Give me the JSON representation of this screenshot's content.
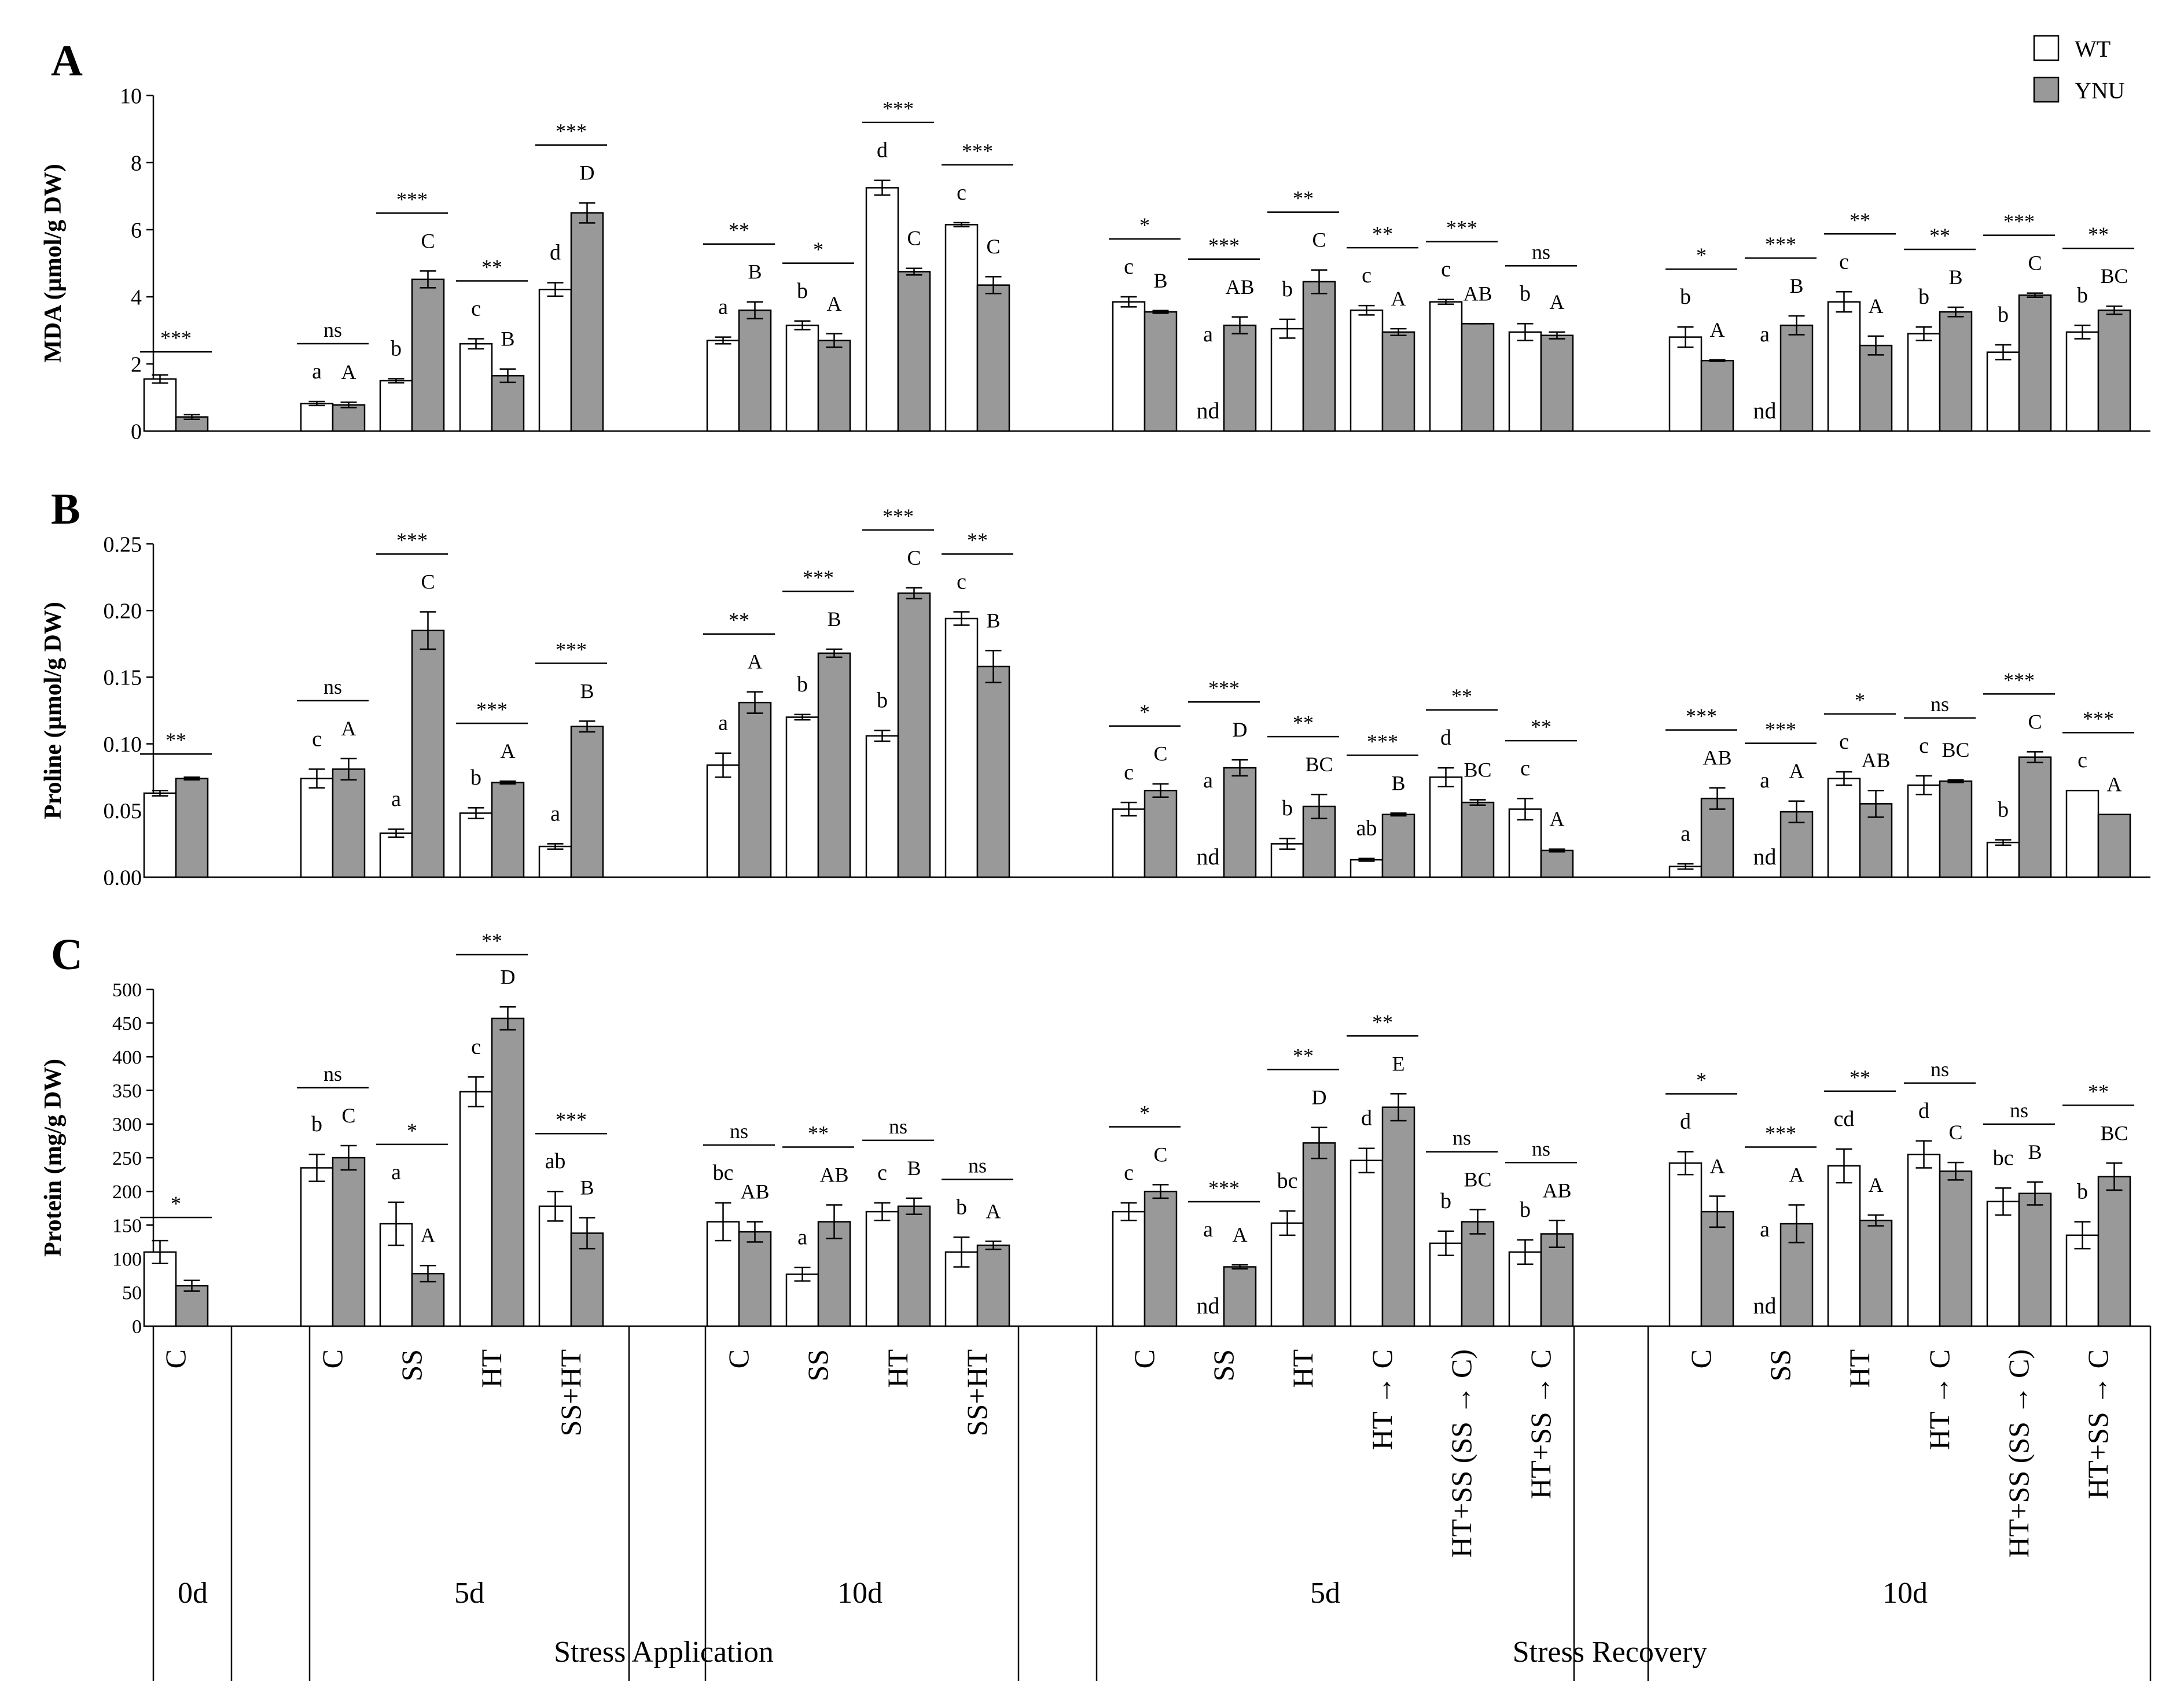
{
  "chart_data": {
    "type": "bar",
    "legend": {
      "position": "top-right",
      "entries": [
        {
          "name": "WT",
          "color": "#ffffff"
        },
        {
          "name": "YNU",
          "color": "#999999"
        }
      ]
    },
    "colors": {
      "WT": "#ffffff",
      "YNU": "#999999",
      "line": "#000000"
    },
    "panels": [
      {
        "id": "A",
        "label": "A",
        "ylabel": "MDA (µmol/g DW)",
        "ylim": [
          0,
          10
        ],
        "yticks": [
          "0",
          "2",
          "4",
          "6",
          "8",
          "10"
        ],
        "tick_values": [
          0,
          2,
          4,
          6,
          8,
          10
        ],
        "data": [
          [
            1.55,
            0.12,
            0.42,
            0.07,
            "",
            "",
            "***"
          ],
          [
            0.82,
            0.06,
            0.78,
            0.08,
            "a",
            "A",
            "ns"
          ],
          [
            1.5,
            0.06,
            4.52,
            0.25,
            "b",
            "C",
            "***"
          ],
          [
            2.6,
            0.15,
            1.65,
            0.2,
            "c",
            "B",
            "**"
          ],
          [
            4.22,
            0.2,
            6.5,
            0.3,
            "d",
            "D",
            "***"
          ],
          [
            2.7,
            0.1,
            3.6,
            0.25,
            "a",
            "B",
            "**"
          ],
          [
            3.15,
            0.13,
            2.7,
            0.2,
            "b",
            "A",
            "*"
          ],
          [
            7.25,
            0.22,
            4.75,
            0.1,
            "d",
            "C",
            "***"
          ],
          [
            6.15,
            0.06,
            4.35,
            0.25,
            "c",
            "C",
            "***"
          ],
          [
            3.85,
            0.15,
            3.55,
            0.04,
            "c",
            "B",
            "*"
          ],
          [
            null,
            0,
            3.15,
            0.25,
            "a",
            "AB",
            "***"
          ],
          [
            3.05,
            0.28,
            4.45,
            0.35,
            "b",
            "C",
            "**"
          ],
          [
            3.6,
            0.14,
            2.95,
            0.1,
            "c",
            "A",
            "**"
          ],
          [
            3.85,
            0.07,
            3.2,
            0,
            "c",
            "AB",
            "***"
          ],
          [
            2.95,
            0.25,
            2.85,
            0.1,
            "b",
            "A",
            "ns"
          ],
          [
            2.8,
            0.3,
            2.1,
            0.02,
            "b",
            "A",
            "*"
          ],
          [
            null,
            0,
            3.15,
            0.28,
            "a",
            "B",
            "***"
          ],
          [
            3.85,
            0.3,
            2.55,
            0.28,
            "c",
            "A",
            "**"
          ],
          [
            2.9,
            0.2,
            3.55,
            0.14,
            "b",
            "B",
            "**"
          ],
          [
            2.35,
            0.22,
            4.05,
            0.06,
            "b",
            "C",
            "***"
          ],
          [
            2.95,
            0.2,
            3.6,
            0.12,
            "b",
            "BC",
            "**"
          ]
        ]
      },
      {
        "id": "B",
        "label": "B",
        "ylabel": "Proline (µmol/g DW)",
        "ylim": [
          0,
          0.25
        ],
        "yticks": [
          "0.00",
          "0.05",
          "0.10",
          "0.15",
          "0.20",
          "0.25"
        ],
        "tick_values": [
          0,
          0.05,
          0.1,
          0.15,
          0.2,
          0.25
        ],
        "data": [
          [
            0.063,
            0.002,
            0.074,
            0.001,
            "",
            "",
            "**"
          ],
          [
            0.074,
            0.007,
            0.081,
            0.008,
            "c",
            "A",
            "ns"
          ],
          [
            0.033,
            0.003,
            0.185,
            0.014,
            "a",
            "C",
            "***"
          ],
          [
            0.048,
            0.004,
            0.071,
            0.001,
            "b",
            "A",
            "***"
          ],
          [
            0.023,
            0.002,
            0.113,
            0.004,
            "a",
            "B",
            "***"
          ],
          [
            0.084,
            0.009,
            0.131,
            0.008,
            "a",
            "A",
            "**"
          ],
          [
            0.12,
            0.002,
            0.168,
            0.003,
            "b",
            "B",
            "***"
          ],
          [
            0.106,
            0.004,
            0.213,
            0.004,
            "b",
            "C",
            "***"
          ],
          [
            0.194,
            0.005,
            0.158,
            0.012,
            "c",
            "B",
            "**"
          ],
          [
            0.051,
            0.005,
            0.065,
            0.005,
            "c",
            "C",
            "*"
          ],
          [
            null,
            0,
            0.082,
            0.006,
            "a",
            "D",
            "***"
          ],
          [
            0.025,
            0.004,
            0.053,
            0.009,
            "b",
            "BC",
            "**"
          ],
          [
            0.013,
            0.001,
            0.047,
            0.001,
            "ab",
            "B",
            "***"
          ],
          [
            0.075,
            0.007,
            0.056,
            0.002,
            "d",
            "BC",
            "**"
          ],
          [
            0.051,
            0.008,
            0.02,
            0.001,
            "c",
            "A",
            "**"
          ],
          [
            0.008,
            0.002,
            0.059,
            0.008,
            "a",
            "AB",
            "***"
          ],
          [
            null,
            0,
            0.049,
            0.008,
            "a",
            "A",
            "***"
          ],
          [
            0.074,
            0.005,
            0.055,
            0.01,
            "c",
            "AB",
            "*"
          ],
          [
            0.069,
            0.007,
            0.072,
            0.001,
            "c",
            "BC",
            "ns"
          ],
          [
            0.026,
            0.002,
            0.09,
            0.004,
            "b",
            "C",
            "***"
          ],
          [
            0.065,
            0,
            0.047,
            0,
            "c",
            "A",
            "***"
          ]
        ]
      },
      {
        "id": "C",
        "label": "C",
        "ylabel": "Protein (mg/g DW)",
        "ylim": [
          0,
          500
        ],
        "yticks": [
          "0",
          "50",
          "100",
          "150",
          "200",
          "250",
          "300",
          "350",
          "400",
          "450",
          "500"
        ],
        "tick_values": [
          0,
          50,
          100,
          150,
          200,
          250,
          300,
          350,
          400,
          450,
          500
        ],
        "data": [
          [
            110,
            17,
            60,
            8,
            "",
            "",
            "*"
          ],
          [
            235,
            20,
            250,
            18,
            "b",
            "C",
            "ns"
          ],
          [
            152,
            32,
            78,
            12,
            "a",
            "A",
            "*"
          ],
          [
            348,
            22,
            457,
            17,
            "c",
            "D",
            "**"
          ],
          [
            178,
            22,
            138,
            23,
            "ab",
            "B",
            "***"
          ],
          [
            155,
            28,
            140,
            15,
            "bc",
            "AB",
            "ns"
          ],
          [
            77,
            10,
            155,
            25,
            "a",
            "AB",
            "**"
          ],
          [
            170,
            13,
            178,
            12,
            "c",
            "B",
            "ns"
          ],
          [
            110,
            22,
            120,
            6,
            "b",
            "A",
            "ns"
          ],
          [
            170,
            13,
            200,
            10,
            "c",
            "C",
            "*"
          ],
          [
            null,
            0,
            88,
            3,
            "a",
            "A",
            "***"
          ],
          [
            153,
            18,
            272,
            23,
            "bc",
            "D",
            "**"
          ],
          [
            246,
            18,
            325,
            20,
            "d",
            "E",
            "**"
          ],
          [
            123,
            18,
            155,
            18,
            "b",
            "BC",
            "ns"
          ],
          [
            110,
            18,
            137,
            20,
            "b",
            "AB",
            "ns"
          ],
          [
            242,
            17,
            170,
            23,
            "d",
            "A",
            "*"
          ],
          [
            null,
            0,
            152,
            28,
            "a",
            "A",
            "***"
          ],
          [
            238,
            25,
            157,
            8,
            "cd",
            "A",
            "**"
          ],
          [
            255,
            20,
            230,
            13,
            "d",
            "C",
            "ns"
          ],
          [
            185,
            20,
            197,
            17,
            "bc",
            "B",
            "ns"
          ],
          [
            135,
            20,
            222,
            20,
            "b",
            "BC",
            "**"
          ]
        ]
      }
    ],
    "nd_label": "nd",
    "categories": [
      "C",
      "C",
      "SS",
      "HT",
      "SS+HT",
      "C",
      "SS",
      "HT",
      "SS+HT",
      "C",
      "SS",
      "HT",
      "HT → C",
      "HT+SS (SS → C)",
      "HT+SS → C",
      "C",
      "SS",
      "HT",
      "HT → C",
      "HT+SS (SS → C)",
      "HT+SS → C"
    ],
    "days": [
      "0d",
      "5d",
      "10d",
      "5d",
      "10d"
    ],
    "phases": [
      "Stress Application",
      "Stress Recovery"
    ]
  }
}
